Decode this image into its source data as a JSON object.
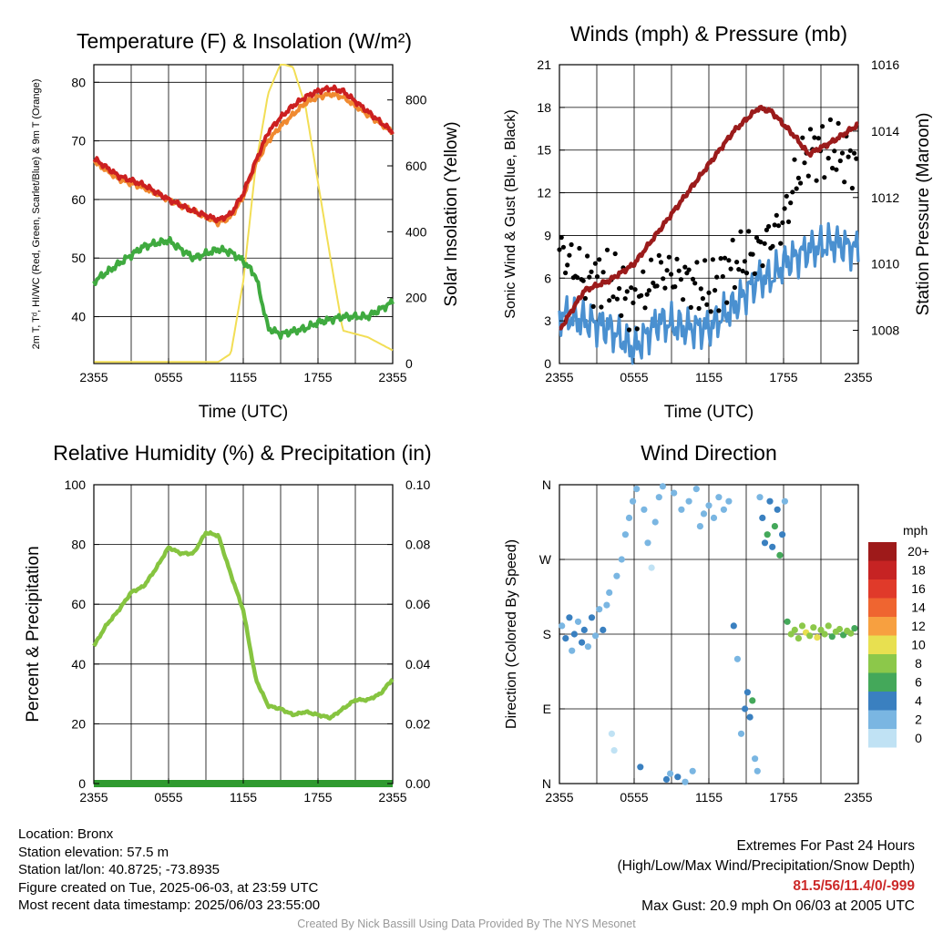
{
  "charts": [
    {
      "id": "temp",
      "type": "line",
      "title": "Temperature (F) & Insolation (W/m²)",
      "xlabel": "Time (UTC)",
      "ylabel_left": "2m T, Tᵈ, HI/WC (Red, Green, Scarlet/Blue) & 9m T (Orange)",
      "ylabel_right": "Solar Insolation (Yellow)",
      "x_ticks": [
        "2355",
        "0555",
        "1155",
        "1755",
        "2355"
      ],
      "y_left_ticks": [
        "40",
        "50",
        "60",
        "70",
        "80"
      ],
      "y_right_ticks": [
        "0",
        "200",
        "400",
        "600",
        "800"
      ]
    },
    {
      "id": "wind",
      "type": "line",
      "title": "Winds (mph) & Pressure (mb)",
      "xlabel": "Time (UTC)",
      "ylabel_left": "Sonic Wind & Gust (Blue, Black)",
      "ylabel_right": "Station Pressure (Maroon)",
      "x_ticks": [
        "2355",
        "0555",
        "1155",
        "1755",
        "2355"
      ],
      "y_left_ticks": [
        "0",
        "3",
        "6",
        "9",
        "12",
        "15",
        "18",
        "21"
      ],
      "y_right_ticks": [
        "1008",
        "1010",
        "1012",
        "1014",
        "1016"
      ]
    },
    {
      "id": "rh",
      "type": "line",
      "title": "Relative Humidity (%) & Precipitation (in)",
      "xlabel": "",
      "ylabel_left": "Percent & Precipitation",
      "ylabel_right": "",
      "x_ticks": [
        "2355",
        "0555",
        "1155",
        "1755",
        "2355"
      ],
      "y_left_ticks": [
        "0",
        "20",
        "40",
        "60",
        "80",
        "100"
      ],
      "y_right_ticks": [
        "0.00",
        "0.02",
        "0.04",
        "0.06",
        "0.08",
        "0.10"
      ]
    },
    {
      "id": "wdir",
      "type": "scatter",
      "title": "Wind Direction",
      "xlabel": "",
      "ylabel_left": "Direction (Colored By Speed)",
      "ylabel_right": "",
      "x_ticks": [
        "2355",
        "0555",
        "1155",
        "1755",
        "2355"
      ],
      "y_left_ticks": [
        "N",
        "E",
        "S",
        "W",
        "N"
      ],
      "y_right_ticks": []
    }
  ],
  "legend": {
    "title": "mph",
    "labels": [
      "20+",
      "18",
      "16",
      "14",
      "12",
      "10",
      "8",
      "6",
      "4",
      "2",
      "0"
    ],
    "colors": [
      "#9e1a1a",
      "#c62323",
      "#e03a2a",
      "#ef6530",
      "#f7a040",
      "#e8e050",
      "#8cc84a",
      "#44a85a",
      "#3a80c0",
      "#7ab6e2",
      "#c0e2f4"
    ]
  },
  "chart_data": [
    {
      "type": "line",
      "title": "Temperature (F) & Insolation (W/m²)",
      "x_hours": [
        0,
        2,
        4,
        6,
        8,
        10,
        11,
        12,
        13,
        14,
        15,
        16,
        17,
        18,
        19,
        20,
        22,
        24
      ],
      "series": [
        {
          "name": "2m T",
          "color": "#cc2020",
          "axis": "left",
          "values": [
            67,
            64,
            62.5,
            60,
            58,
            56.5,
            57.5,
            61,
            66.5,
            71.5,
            74,
            76,
            77.5,
            78.5,
            79,
            78.5,
            75,
            71.5
          ]
        },
        {
          "name": "9m T",
          "color": "#f08a30",
          "axis": "left",
          "values": [
            66.5,
            63.5,
            62,
            60,
            58,
            56,
            57,
            60.5,
            66,
            70,
            72.5,
            74.5,
            76.5,
            77.5,
            78,
            77.5,
            74.5,
            71.5
          ]
        },
        {
          "name": "Tᵈ",
          "color": "#3faa3f",
          "axis": "left",
          "values": [
            46,
            49,
            52,
            53,
            50,
            51.5,
            51,
            49.5,
            47,
            38,
            37,
            37.5,
            38,
            39,
            39.5,
            40,
            40,
            42.5
          ]
        },
        {
          "name": "Solar Insolation",
          "color": "#f2de55",
          "axis": "right",
          "values": [
            5,
            5,
            5,
            5,
            5,
            5,
            30,
            250,
            600,
            820,
            910,
            900,
            780,
            550,
            320,
            100,
            80,
            40
          ]
        }
      ],
      "ylim_left": [
        32,
        83
      ],
      "ylim_right": [
        0,
        907
      ]
    },
    {
      "type": "line",
      "title": "Winds (mph) & Pressure (mb)",
      "x_hours": [
        0,
        2,
        4,
        6,
        8,
        10,
        12,
        14,
        16,
        17,
        18,
        19,
        20,
        22,
        24
      ],
      "series": [
        {
          "name": "Sonic Wind",
          "color": "#4a90d0",
          "axis": "left",
          "values": [
            3.5,
            3,
            2.5,
            1,
            3,
            2.5,
            2.5,
            4,
            6,
            6,
            7,
            7.5,
            8,
            8.5,
            8
          ]
        },
        {
          "name": "Gust",
          "color": "#000000",
          "axis": "left",
          "values": [
            8,
            6,
            6,
            4,
            6.5,
            6,
            5,
            7,
            8,
            9,
            10,
            13,
            15,
            15,
            14
          ]
        },
        {
          "name": "Station Pressure",
          "color": "#9b1b1b",
          "axis": "right",
          "values": [
            1008,
            1009.2,
            1009.5,
            1010,
            1011,
            1012,
            1013,
            1014,
            1014.7,
            1014.6,
            1014.2,
            1013.8,
            1013.3,
            1013.7,
            1014.2
          ]
        }
      ],
      "ylim_left": [
        0,
        21
      ],
      "ylim_right": [
        1007,
        1016
      ]
    },
    {
      "type": "line",
      "title": "Relative Humidity (%) & Precipitation (in)",
      "x_hours": [
        0,
        1,
        2,
        3,
        4,
        5,
        6,
        7,
        8,
        9,
        10,
        11,
        12,
        13,
        14,
        15,
        16,
        17,
        18,
        19,
        20,
        21,
        22,
        23,
        24
      ],
      "series": [
        {
          "name": "Relative Humidity",
          "color": "#86c440",
          "axis": "left",
          "values": [
            46,
            53,
            58,
            64,
            66,
            72,
            79,
            77,
            77,
            84,
            83,
            70,
            58,
            35,
            26,
            25,
            23,
            24,
            23,
            22,
            25,
            28,
            28,
            30,
            35
          ]
        },
        {
          "name": "Precipitation",
          "color": "#2f9a2f",
          "axis": "right",
          "values": [
            0,
            0,
            0,
            0,
            0,
            0,
            0,
            0,
            0,
            0,
            0,
            0,
            0,
            0,
            0,
            0,
            0,
            0,
            0,
            0,
            0,
            0,
            0,
            0,
            0
          ]
        }
      ],
      "ylim_left": [
        0,
        100
      ],
      "ylim_right": [
        0,
        0.1
      ]
    },
    {
      "type": "scatter",
      "title": "Wind Direction",
      "points": [
        {
          "h": 0.2,
          "dir": 190,
          "speed": 3
        },
        {
          "h": 0.5,
          "dir": 175,
          "speed": 4
        },
        {
          "h": 0.8,
          "dir": 200,
          "speed": 5
        },
        {
          "h": 1.0,
          "dir": 160,
          "speed": 3
        },
        {
          "h": 1.2,
          "dir": 180,
          "speed": 4
        },
        {
          "h": 1.5,
          "dir": 195,
          "speed": 2
        },
        {
          "h": 1.8,
          "dir": 170,
          "speed": 4
        },
        {
          "h": 2.0,
          "dir": 185,
          "speed": 5
        },
        {
          "h": 2.3,
          "dir": 165,
          "speed": 3
        },
        {
          "h": 2.6,
          "dir": 200,
          "speed": 4
        },
        {
          "h": 2.9,
          "dir": 178,
          "speed": 3
        },
        {
          "h": 3.2,
          "dir": 210,
          "speed": 2
        },
        {
          "h": 3.5,
          "dir": 185,
          "speed": 5
        },
        {
          "h": 3.8,
          "dir": 215,
          "speed": 3
        },
        {
          "h": 4.0,
          "dir": 230,
          "speed": 2
        },
        {
          "h": 4.2,
          "dir": 60,
          "speed": 1
        },
        {
          "h": 4.4,
          "dir": 40,
          "speed": 1
        },
        {
          "h": 4.6,
          "dir": 250,
          "speed": 2
        },
        {
          "h": 5.0,
          "dir": 270,
          "speed": 2
        },
        {
          "h": 5.3,
          "dir": 300,
          "speed": 3
        },
        {
          "h": 5.6,
          "dir": 320,
          "speed": 2
        },
        {
          "h": 5.9,
          "dir": 340,
          "speed": 3
        },
        {
          "h": 6.2,
          "dir": 355,
          "speed": 2
        },
        {
          "h": 6.5,
          "dir": 20,
          "speed": 4
        },
        {
          "h": 6.8,
          "dir": 330,
          "speed": 2
        },
        {
          "h": 7.1,
          "dir": 290,
          "speed": 3
        },
        {
          "h": 7.4,
          "dir": 260,
          "speed": 1
        },
        {
          "h": 7.7,
          "dir": 315,
          "speed": 2
        },
        {
          "h": 8.0,
          "dir": 345,
          "speed": 3
        },
        {
          "h": 8.3,
          "dir": 358,
          "speed": 2
        },
        {
          "h": 8.6,
          "dir": 5,
          "speed": 4
        },
        {
          "h": 8.9,
          "dir": 12,
          "speed": 3
        },
        {
          "h": 9.2,
          "dir": 350,
          "speed": 2
        },
        {
          "h": 9.5,
          "dir": 8,
          "speed": 4
        },
        {
          "h": 9.8,
          "dir": 330,
          "speed": 2
        },
        {
          "h": 10.1,
          "dir": 2,
          "speed": 3
        },
        {
          "h": 10.4,
          "dir": 340,
          "speed": 2
        },
        {
          "h": 10.7,
          "dir": 15,
          "speed": 3
        },
        {
          "h": 11.0,
          "dir": 355,
          "speed": 2
        },
        {
          "h": 11.3,
          "dir": 310,
          "speed": 2
        },
        {
          "h": 11.6,
          "dir": 325,
          "speed": 2
        },
        {
          "h": 12.0,
          "dir": 335,
          "speed": 3
        },
        {
          "h": 12.4,
          "dir": 320,
          "speed": 2
        },
        {
          "h": 12.8,
          "dir": 345,
          "speed": 2
        },
        {
          "h": 13.2,
          "dir": 330,
          "speed": 2
        },
        {
          "h": 13.6,
          "dir": 340,
          "speed": 3
        },
        {
          "h": 14.0,
          "dir": 190,
          "speed": 4
        },
        {
          "h": 14.3,
          "dir": 150,
          "speed": 3
        },
        {
          "h": 14.6,
          "dir": 60,
          "speed": 3
        },
        {
          "h": 14.9,
          "dir": 90,
          "speed": 4
        },
        {
          "h": 15.1,
          "dir": 110,
          "speed": 5
        },
        {
          "h": 15.3,
          "dir": 80,
          "speed": 4
        },
        {
          "h": 15.5,
          "dir": 100,
          "speed": 6
        },
        {
          "h": 15.7,
          "dir": 30,
          "speed": 3
        },
        {
          "h": 15.9,
          "dir": 15,
          "speed": 2
        },
        {
          "h": 16.1,
          "dir": 345,
          "speed": 3
        },
        {
          "h": 16.3,
          "dir": 320,
          "speed": 5
        },
        {
          "h": 16.5,
          "dir": 290,
          "speed": 4
        },
        {
          "h": 16.7,
          "dir": 300,
          "speed": 6
        },
        {
          "h": 16.9,
          "dir": 340,
          "speed": 4
        },
        {
          "h": 17.1,
          "dir": 285,
          "speed": 5
        },
        {
          "h": 17.3,
          "dir": 310,
          "speed": 7
        },
        {
          "h": 17.5,
          "dir": 330,
          "speed": 4
        },
        {
          "h": 17.7,
          "dir": 275,
          "speed": 6
        },
        {
          "h": 17.9,
          "dir": 300,
          "speed": 5
        },
        {
          "h": 18.1,
          "dir": 340,
          "speed": 3
        },
        {
          "h": 18.3,
          "dir": 195,
          "speed": 7
        },
        {
          "h": 18.6,
          "dir": 180,
          "speed": 8
        },
        {
          "h": 18.9,
          "dir": 185,
          "speed": 9
        },
        {
          "h": 19.2,
          "dir": 175,
          "speed": 8
        },
        {
          "h": 19.5,
          "dir": 190,
          "speed": 9
        },
        {
          "h": 19.8,
          "dir": 182,
          "speed": 10
        },
        {
          "h": 20.1,
          "dir": 178,
          "speed": 9
        },
        {
          "h": 20.4,
          "dir": 188,
          "speed": 8
        },
        {
          "h": 20.7,
          "dir": 176,
          "speed": 10
        },
        {
          "h": 21.0,
          "dir": 185,
          "speed": 9
        },
        {
          "h": 21.3,
          "dir": 180,
          "speed": 8
        },
        {
          "h": 21.6,
          "dir": 190,
          "speed": 9
        },
        {
          "h": 21.9,
          "dir": 177,
          "speed": 7
        },
        {
          "h": 22.2,
          "dir": 183,
          "speed": 8
        },
        {
          "h": 22.5,
          "dir": 186,
          "speed": 8
        },
        {
          "h": 22.8,
          "dir": 179,
          "speed": 7
        },
        {
          "h": 23.1,
          "dir": 184,
          "speed": 8
        },
        {
          "h": 23.4,
          "dir": 181,
          "speed": 9
        },
        {
          "h": 23.7,
          "dir": 187,
          "speed": 7
        }
      ],
      "ylim": [
        0,
        360
      ]
    }
  ],
  "info": {
    "location": "Location: Bronx",
    "elevation": "Station elevation: 57.5 m",
    "latlon": "Station lat/lon: 40.8725; -73.8935",
    "created": "Figure created on Tue, 2025-06-03, at 23:59 UTC",
    "recent": "Most recent data timestamp: 2025/06/03 23:55:00"
  },
  "extremes": {
    "heading": "Extremes For Past 24 Hours",
    "subheading": "(High/Low/Max Wind/Precipitation/Snow Depth)",
    "values": "81.5/56/11.4/0/-999",
    "gust": "Max Gust: 20.9 mph On 06/03 at 2005 UTC"
  },
  "credit": "Created By Nick Bassill Using Data Provided By The NYS Mesonet"
}
